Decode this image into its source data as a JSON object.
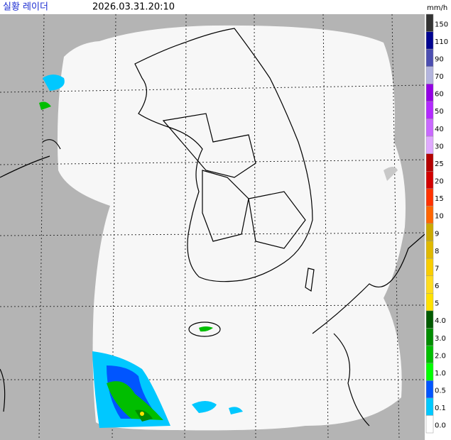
{
  "header": {
    "title": "실황 레이더",
    "timestamp": "2026.03.31.20:10",
    "unit": "mm/h"
  },
  "legend": [
    {
      "label": "150",
      "color": "#333333"
    },
    {
      "label": "110",
      "color": "#000390"
    },
    {
      "label": "90",
      "color": "#4c4eb1"
    },
    {
      "label": "70",
      "color": "#b3b4de"
    },
    {
      "label": "60",
      "color": "#9300e4"
    },
    {
      "label": "50",
      "color": "#b329ff"
    },
    {
      "label": "40",
      "color": "#c969ff"
    },
    {
      "label": "30",
      "color": "#e0a9ff"
    },
    {
      "label": "25",
      "color": "#b40000"
    },
    {
      "label": "20",
      "color": "#d20000"
    },
    {
      "label": "15",
      "color": "#ff3200"
    },
    {
      "label": "10",
      "color": "#ff6600"
    },
    {
      "label": "9",
      "color": "#ccaa00"
    },
    {
      "label": "8",
      "color": "#e0b900"
    },
    {
      "label": "7",
      "color": "#f9cd00"
    },
    {
      "label": "6",
      "color": "#ffdc1f"
    },
    {
      "label": "5",
      "color": "#ffe100"
    },
    {
      "label": "4.0",
      "color": "#005a00"
    },
    {
      "label": "3.0",
      "color": "#008c00"
    },
    {
      "label": "2.0",
      "color": "#00be00"
    },
    {
      "label": "1.0",
      "color": "#00ff00"
    },
    {
      "label": "0.5",
      "color": "#0055ff"
    },
    {
      "label": "0.1",
      "color": "#00c8ff"
    },
    {
      "label": "0.0",
      "color": "#ffffff"
    }
  ]
}
